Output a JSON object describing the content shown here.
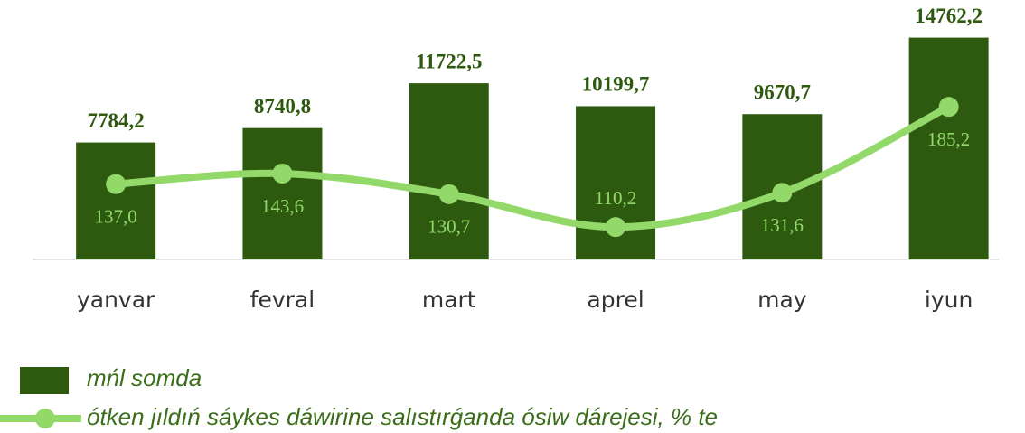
{
  "chart_data": {
    "type": "bar",
    "categories": [
      "yanvar",
      "fevral",
      "mart",
      "aprel",
      "may",
      "iyun"
    ],
    "series": [
      {
        "name": "mńl somda",
        "type": "bar",
        "color": "#2e5a10",
        "values": [
          7784.2,
          8740.8,
          11722.5,
          10199.7,
          9670.7,
          14762.2
        ],
        "value_labels": [
          "7784,2",
          "8740,8",
          "11722,5",
          "10199,7",
          "9670,7",
          "14762,2"
        ]
      },
      {
        "name": "ótken jıldıń sáykes dáwirine salıstırǵanda ósiw dárejesi, % te",
        "type": "line",
        "axis": "y2",
        "color": "#92d96a",
        "values": [
          137.0,
          143.6,
          130.7,
          110.2,
          131.6,
          185.2
        ],
        "value_labels": [
          "137,0",
          "143,6",
          "130,7",
          "110,2",
          "131,6",
          "185,2"
        ]
      }
    ],
    "ylim": [
      0,
      16000
    ],
    "y2lim": [
      90,
      240
    ],
    "legend": "bottom-left"
  }
}
